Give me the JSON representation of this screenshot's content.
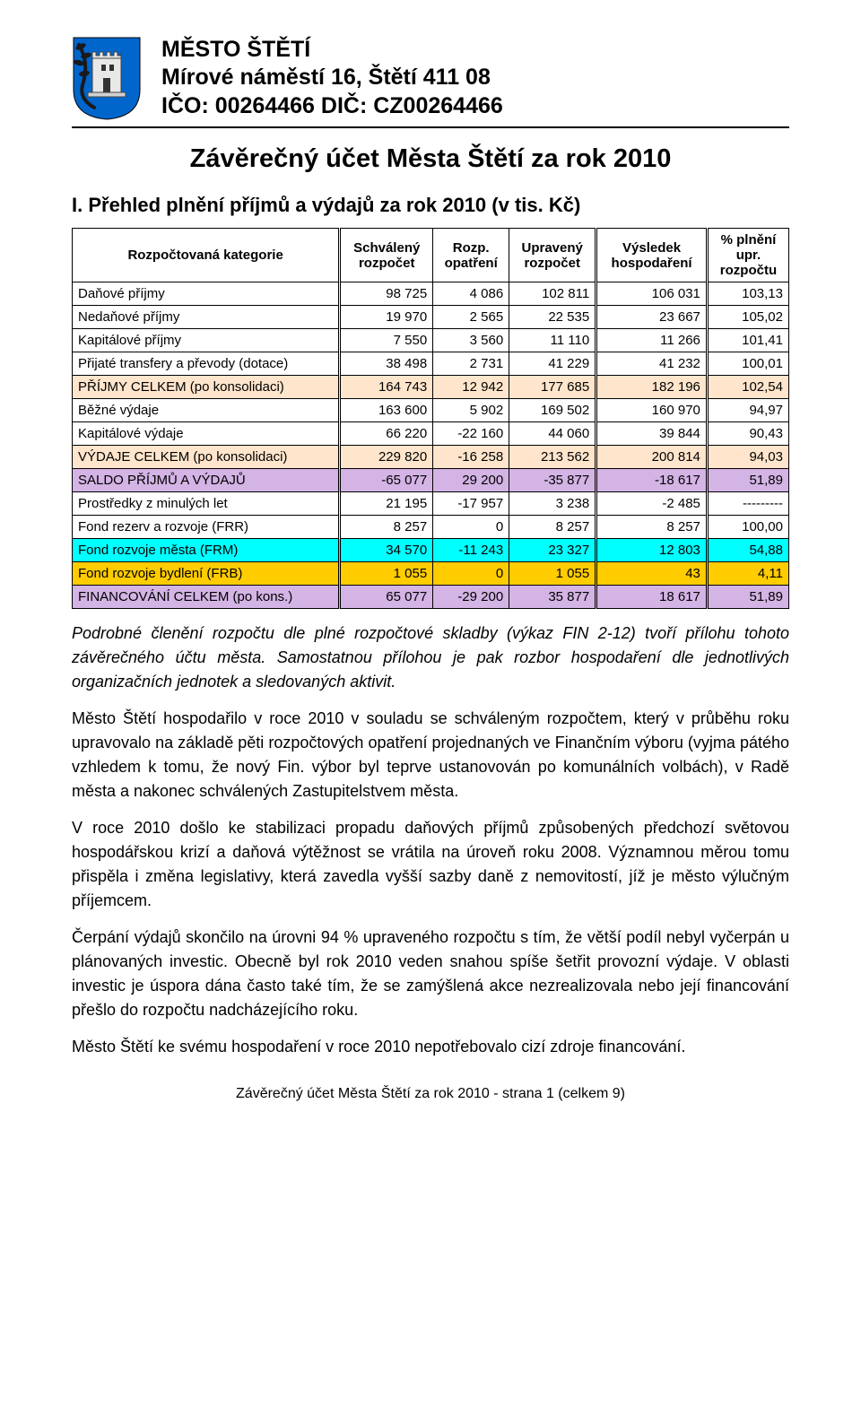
{
  "header": {
    "line1": "MĚSTO ŠTĚTÍ",
    "line2": "Mírové náměstí 16,  Štětí  411 08",
    "line3": "IČO: 00264466  DIČ: CZ00264466"
  },
  "coat_of_arms": {
    "shield_color": "#0066cc",
    "tower_color": "#e8e8e8",
    "branch_color": "#1a1a1a"
  },
  "title": "Závěrečný účet Města Štětí za rok 2010",
  "section_title": "I. Přehled plnění příjmů a výdajů za rok 2010 (v tis. Kč)",
  "table": {
    "headers": {
      "c0": "Rozpočtovaná kategorie",
      "c1_a": "Schválený",
      "c1_b": "rozpočet",
      "c2_a": "Rozp.",
      "c2_b": "opatření",
      "c3_a": "Upravený",
      "c3_b": "rozpočet",
      "c4_a": "Výsledek",
      "c4_b": "hospodaření",
      "c5_a": "% plnění",
      "c5_b": "upr.",
      "c5_c": "rozpočtu"
    },
    "rows": [
      {
        "label": "Daňové příjmy",
        "c1": "98 725",
        "c2": "4 086",
        "c3": "102 811",
        "c4": "106 031",
        "c5": "103,13",
        "class": ""
      },
      {
        "label": "Nedaňové příjmy",
        "c1": "19 970",
        "c2": "2 565",
        "c3": "22 535",
        "c4": "23 667",
        "c5": "105,02",
        "class": ""
      },
      {
        "label": "Kapitálové příjmy",
        "c1": "7 550",
        "c2": "3 560",
        "c3": "11 110",
        "c4": "11 266",
        "c5": "101,41",
        "class": ""
      },
      {
        "label": "Přijaté transfery a převody (dotace)",
        "c1": "38 498",
        "c2": "2 731",
        "c3": "41 229",
        "c4": "41 232",
        "c5": "100,01",
        "class": ""
      },
      {
        "label": "PŘÍJMY CELKEM (po konsolidaci)",
        "c1": "164 743",
        "c2": "12 942",
        "c3": "177 685",
        "c4": "182 196",
        "c5": "102,54",
        "class": "row-peach"
      },
      {
        "label": "Běžné výdaje",
        "c1": "163 600",
        "c2": "5 902",
        "c3": "169 502",
        "c4": "160 970",
        "c5": "94,97",
        "class": ""
      },
      {
        "label": "Kapitálové výdaje",
        "c1": "66 220",
        "c2": "-22 160",
        "c3": "44 060",
        "c4": "39 844",
        "c5": "90,43",
        "class": ""
      },
      {
        "label": "VÝDAJE CELKEM (po konsolidaci)",
        "c1": "229 820",
        "c2": "-16 258",
        "c3": "213 562",
        "c4": "200 814",
        "c5": "94,03",
        "class": "row-peach"
      },
      {
        "label": "SALDO PŘÍJMŮ A VÝDAJŮ",
        "c1": "-65 077",
        "c2": "29 200",
        "c3": "-35 877",
        "c4": "-18 617",
        "c5": "51,89",
        "class": "row-purple"
      },
      {
        "label": "Prostředky z minulých let",
        "c1": "21 195",
        "c2": "-17 957",
        "c3": "3 238",
        "c4": "-2 485",
        "c5": "---------",
        "class": ""
      },
      {
        "label": "Fond rezerv a rozvoje (FRR)",
        "c1": "8 257",
        "c2": "0",
        "c3": "8 257",
        "c4": "8 257",
        "c5": "100,00",
        "class": ""
      },
      {
        "label": "Fond rozvoje města (FRM)",
        "c1": "34 570",
        "c2": "-11 243",
        "c3": "23 327",
        "c4": "12 803",
        "c5": "54,88",
        "class": "row-cyan"
      },
      {
        "label": "Fond rozvoje bydlení (FRB)",
        "c1": "1 055",
        "c2": "0",
        "c3": "1 055",
        "c4": "43",
        "c5": "4,11",
        "class": "row-orange"
      },
      {
        "label": "FINANCOVÁNÍ CELKEM (po kons.)",
        "c1": "65 077",
        "c2": "-29 200",
        "c3": "35 877",
        "c4": "18 617",
        "c5": "51,89",
        "class": "row-purple2"
      }
    ]
  },
  "paragraphs": {
    "p1_italic": "Podrobné členění rozpočtu dle plné rozpočtové skladby (výkaz FIN 2-12) tvoří přílohu tohoto závěrečného účtu města. Samostatnou přílohou je pak rozbor hospodaření dle jednotlivých organizačních jednotek a sledovaných aktivit.",
    "p2": "Město Štětí hospodařilo v roce 2010 v souladu se schváleným rozpočtem, který v průběhu roku upravovalo na základě pěti rozpočtových opatření projednaných ve Finančním výboru (vyjma pátého vzhledem k tomu, že nový Fin. výbor byl teprve ustanovován po komunálních volbách), v Radě města a nakonec schválených Zastupitelstvem města.",
    "p3": "V roce 2010 došlo ke stabilizaci propadu daňových příjmů způsobených předchozí světovou hospodářskou krizí a daňová výtěžnost se vrátila na úroveň roku 2008. Významnou měrou tomu přispěla i změna legislativy, která zavedla vyšší sazby daně z nemovitostí, jíž je město výlučným příjemcem.",
    "p4": "Čerpání výdajů skončilo na úrovni 94 % upraveného rozpočtu s tím, že větší podíl nebyl vyčerpán u plánovaných investic. Obecně byl rok 2010 veden snahou spíše šetřit provozní výdaje. V oblasti investic je úspora dána často také tím, že se zamýšlená akce nezrealizovala nebo její financování přešlo do rozpočtu nadcházejícího roku.",
    "p5": "Město Štětí ke svému hospodaření v roce 2010 nepotřebovalo cizí zdroje financování."
  },
  "footer": "Závěrečný účet Města Štětí za rok 2010 - strana 1 (celkem 9)"
}
